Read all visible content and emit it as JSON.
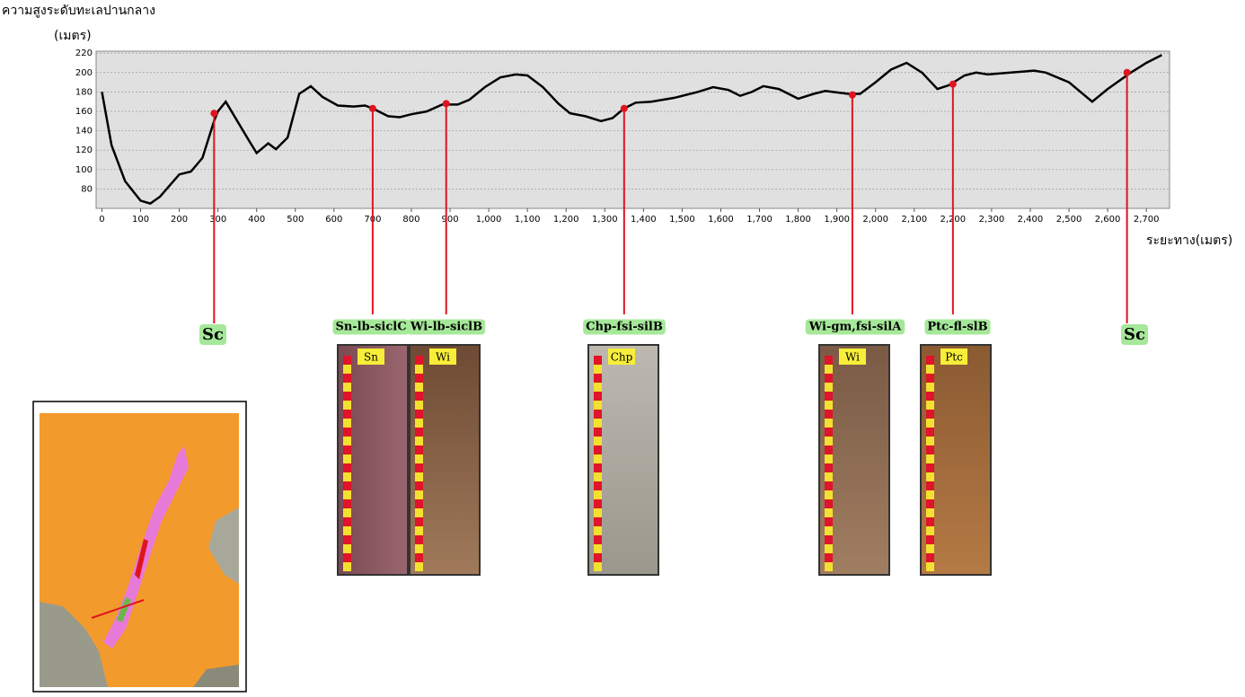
{
  "chart_data": {
    "type": "line",
    "y_title_line1": "ความสูงระดับทะเลปานกลาง",
    "y_title_line2": "(เมตร)",
    "x_title": "ระยะทาง(เมตร)",
    "xlim": [
      -15,
      2760
    ],
    "ylim": [
      60,
      222
    ],
    "xticks": [
      0,
      100,
      200,
      300,
      400,
      500,
      600,
      700,
      800,
      900,
      {
        "value": 1000,
        "label": "1,000"
      },
      {
        "value": 1100,
        "label": "1,100"
      },
      {
        "value": 1200,
        "label": "1,200"
      },
      {
        "value": 1300,
        "label": "1,300"
      },
      {
        "value": 1400,
        "label": "1,400"
      },
      {
        "value": 1500,
        "label": "1,500"
      },
      {
        "value": 1600,
        "label": "1,600"
      },
      {
        "value": 1700,
        "label": "1,700"
      },
      {
        "value": 1800,
        "label": "1,800"
      },
      {
        "value": 1900,
        "label": "1,900"
      },
      {
        "value": 2000,
        "label": "2,000"
      },
      {
        "value": 2100,
        "label": "2,100"
      },
      {
        "value": 2200,
        "label": "2,200"
      },
      {
        "value": 2300,
        "label": "2,300"
      },
      {
        "value": 2400,
        "label": "2,400"
      },
      {
        "value": 2500,
        "label": "2,500"
      },
      {
        "value": 2600,
        "label": "2,600"
      },
      {
        "value": 2700,
        "label": "2,700"
      }
    ],
    "yticks": [
      80,
      100,
      120,
      140,
      160,
      180,
      200,
      220
    ],
    "grid": true,
    "series": [
      {
        "color": "#000000",
        "x": [
          0,
          25,
          60,
          100,
          125,
          150,
          200,
          230,
          260,
          290,
          300,
          320,
          350,
          380,
          400,
          430,
          450,
          480,
          510,
          540,
          570,
          610,
          650,
          680,
          700,
          740,
          770,
          800,
          840,
          880,
          920,
          950,
          990,
          1030,
          1070,
          1100,
          1140,
          1180,
          1210,
          1250,
          1290,
          1320,
          1350,
          1380,
          1420,
          1480,
          1540,
          1580,
          1620,
          1650,
          1680,
          1710,
          1750,
          1800,
          1840,
          1870,
          1930,
          1960,
          2000,
          2040,
          2080,
          2120,
          2160,
          2190,
          2230,
          2260,
          2290,
          2350,
          2410,
          2440,
          2500,
          2560,
          2600,
          2660,
          2700,
          2740
        ],
        "values": [
          180,
          125,
          88,
          68,
          65,
          72,
          95,
          98,
          112,
          150,
          160,
          170,
          150,
          130,
          117,
          127,
          121,
          133,
          178,
          186,
          175,
          166,
          165,
          166,
          163,
          155,
          154,
          157,
          160,
          167,
          167,
          172,
          185,
          195,
          198,
          197,
          185,
          168,
          158,
          155,
          150,
          153,
          163,
          169,
          170,
          174,
          180,
          185,
          182,
          176,
          180,
          186,
          183,
          173,
          178,
          181,
          178,
          178,
          190,
          203,
          210,
          200,
          183,
          187,
          197,
          200,
          198,
          200,
          202,
          200,
          190,
          170,
          183,
          200,
          210,
          218
        ]
      }
    ],
    "sites": {
      "color": "#e0141e",
      "x": [
        290,
        700,
        890,
        1350,
        1940,
        2200,
        2650
      ],
      "values": [
        158,
        163,
        168,
        163,
        177,
        188,
        200
      ],
      "labels": [
        "Sc",
        "Sn-lb-siclC",
        "Wi-lb-siclB",
        "Chp-fsi-silB",
        "Wi-gm,fsi-silA",
        "Ptc-fl-slB",
        "Sc"
      ],
      "photo_tags": [
        null,
        "Sn",
        "Wi",
        "Chp",
        "Wi",
        "Ptc",
        null
      ]
    }
  }
}
